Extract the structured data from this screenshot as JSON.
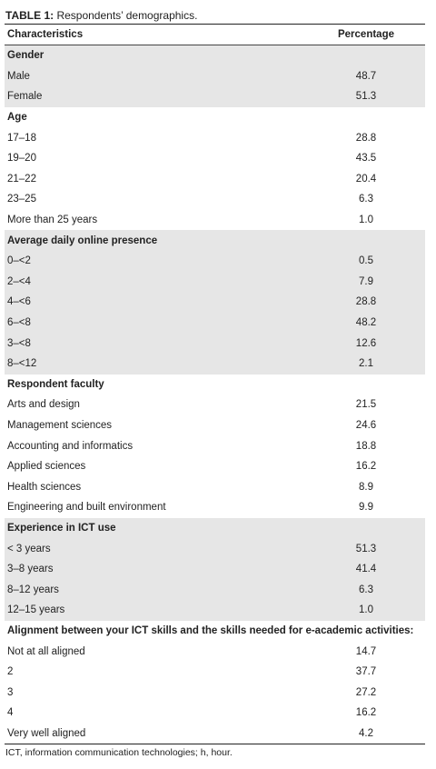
{
  "caption": {
    "label": "TABLE 1:",
    "text": " Respondents’ demographics."
  },
  "table": {
    "headers": [
      "Characteristics",
      "Percentage"
    ],
    "rows": [
      {
        "label": "Gender",
        "value": "",
        "type": "section",
        "shaded": true
      },
      {
        "label": "Male",
        "value": "48.7",
        "type": "data",
        "shaded": true
      },
      {
        "label": "Female",
        "value": "51.3",
        "type": "data",
        "shaded": true
      },
      {
        "label": "Age",
        "value": "",
        "type": "section",
        "shaded": false
      },
      {
        "label": "17–18",
        "value": "28.8",
        "type": "data",
        "shaded": false
      },
      {
        "label": "19–20",
        "value": "43.5",
        "type": "data",
        "shaded": false
      },
      {
        "label": "21–22",
        "value": "20.4",
        "type": "data",
        "shaded": false
      },
      {
        "label": "23–25",
        "value": "6.3",
        "type": "data",
        "shaded": false
      },
      {
        "label": "More than 25 years",
        "value": "1.0",
        "type": "data",
        "shaded": false
      },
      {
        "label": "Average daily online presence",
        "value": "",
        "type": "section",
        "shaded": true
      },
      {
        "label": "0–<2",
        "value": "0.5",
        "type": "data",
        "shaded": true
      },
      {
        "label": "2–<4",
        "value": "7.9",
        "type": "data",
        "shaded": true
      },
      {
        "label": "4–<6",
        "value": "28.8",
        "type": "data",
        "shaded": true
      },
      {
        "label": "6–<8",
        "value": "48.2",
        "type": "data",
        "shaded": true
      },
      {
        "label": "3–<8",
        "value": "12.6",
        "type": "data",
        "shaded": true
      },
      {
        "label": "8–<12",
        "value": "2.1",
        "type": "data",
        "shaded": true
      },
      {
        "label": "Respondent faculty",
        "value": "",
        "type": "section",
        "shaded": false
      },
      {
        "label": "Arts and design",
        "value": "21.5",
        "type": "data",
        "shaded": false
      },
      {
        "label": "Management sciences",
        "value": "24.6",
        "type": "data",
        "shaded": false
      },
      {
        "label": "Accounting and informatics",
        "value": "18.8",
        "type": "data",
        "shaded": false
      },
      {
        "label": "Applied sciences",
        "value": "16.2",
        "type": "data",
        "shaded": false
      },
      {
        "label": "Health sciences",
        "value": "8.9",
        "type": "data",
        "shaded": false
      },
      {
        "label": "Engineering and built environment",
        "value": "9.9",
        "type": "data",
        "shaded": false
      },
      {
        "label": "Experience in ICT use",
        "value": "",
        "type": "section",
        "shaded": true
      },
      {
        "label": "< 3 years",
        "value": "51.3",
        "type": "data",
        "shaded": true
      },
      {
        "label": "3–8 years",
        "value": "41.4",
        "type": "data",
        "shaded": true
      },
      {
        "label": "8–12 years",
        "value": "6.3",
        "type": "data",
        "shaded": true
      },
      {
        "label": "12–15 years",
        "value": "1.0",
        "type": "data",
        "shaded": true
      },
      {
        "label": "Alignment between your ICT skills and the skills needed for e-academic activities:",
        "value": "",
        "type": "section",
        "shaded": false
      },
      {
        "label": "Not at all aligned",
        "value": "14.7",
        "type": "data",
        "shaded": false
      },
      {
        "label": "2",
        "value": "37.7",
        "type": "data",
        "shaded": false
      },
      {
        "label": "3",
        "value": "27.2",
        "type": "data",
        "shaded": false
      },
      {
        "label": "4",
        "value": "16.2",
        "type": "data",
        "shaded": false
      },
      {
        "label": "Very well aligned",
        "value": "4.2",
        "type": "data",
        "shaded": false
      }
    ]
  },
  "footnote": "ICT, information communication technologies; h, hour.",
  "colors": {
    "shade": "#e6e6e6",
    "text": "#222222",
    "rule": "#222222"
  }
}
